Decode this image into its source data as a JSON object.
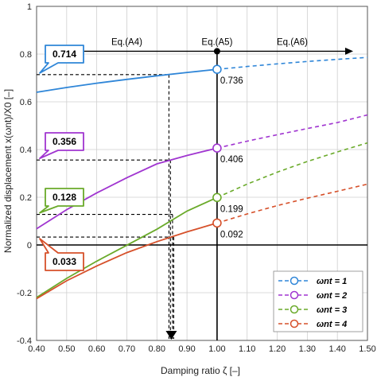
{
  "chart_data": {
    "type": "line",
    "xlabel": "Damping ratio ζ [–]",
    "ylabel": "Normalized displacement x(ωnt)/X0 [–]",
    "xlim": [
      0.4,
      1.5
    ],
    "ylim": [
      -0.4,
      1.0
    ],
    "x_ticks": [
      "0.40",
      "0.50",
      "0.60",
      "0.70",
      "0.80",
      "0.90",
      "1.00",
      "1.10",
      "1.20",
      "1.30",
      "1.40",
      "1.50"
    ],
    "y_ticks": [
      "-0.4",
      "-0.2",
      "0",
      "0.2",
      "0.4",
      "0.6",
      "0.8",
      "1"
    ],
    "grid": true,
    "legend_position": "bottom-right",
    "series": [
      {
        "name": "ωnt = 1",
        "color": "#2f86d8",
        "x": [
          0.4,
          0.5,
          0.6,
          0.7,
          0.8,
          0.9,
          1.0,
          1.1,
          1.2,
          1.3,
          1.4,
          1.5
        ],
        "y": [
          0.64,
          0.66,
          0.678,
          0.694,
          0.709,
          0.723,
          0.736,
          0.748,
          0.759,
          0.769,
          0.778,
          0.786
        ]
      },
      {
        "name": "ωnt = 2",
        "color": "#a035d0",
        "x": [
          0.4,
          0.5,
          0.6,
          0.7,
          0.8,
          0.9,
          1.0,
          1.1,
          1.2,
          1.3,
          1.4,
          1.5
        ],
        "y": [
          0.068,
          0.148,
          0.218,
          0.282,
          0.34,
          0.375,
          0.406,
          0.435,
          0.462,
          0.488,
          0.513,
          0.545
        ]
      },
      {
        "name": "ωnt = 3",
        "color": "#6aaa2a",
        "x": [
          0.4,
          0.5,
          0.6,
          0.7,
          0.8,
          0.9,
          1.0,
          1.1,
          1.2,
          1.3,
          1.4,
          1.5
        ],
        "y": [
          -0.22,
          -0.14,
          -0.068,
          -0.001,
          0.066,
          0.142,
          0.199,
          0.255,
          0.305,
          0.35,
          0.39,
          0.428
        ]
      },
      {
        "name": "ωnt = 4",
        "color": "#d6502a",
        "x": [
          0.4,
          0.5,
          0.6,
          0.7,
          0.8,
          0.9,
          1.0,
          1.1,
          1.2,
          1.3,
          1.4,
          1.5
        ],
        "y": [
          -0.225,
          -0.15,
          -0.088,
          -0.032,
          0.014,
          0.055,
          0.092,
          0.13,
          0.165,
          0.196,
          0.225,
          0.255
        ]
      }
    ],
    "solid_until_x": 1.0,
    "region_labels": [
      {
        "text": "Eq.(A4)",
        "from_x": 0.4,
        "to_x": 1.0
      },
      {
        "text": "Eq.(A5)",
        "at_x": 1.0
      },
      {
        "text": "Eq.(A6)",
        "from_x": 1.0,
        "to_x": 1.5
      }
    ],
    "region_arrow_y": 0.812,
    "marker_x": 1.0,
    "marker_labels": [
      "0.736",
      "0.406",
      "0.199",
      "0.092"
    ],
    "callouts": [
      {
        "text": "0.714",
        "value": 0.714,
        "x_intercept": 0.84,
        "color": "#2f86d8"
      },
      {
        "text": "0.356",
        "value": 0.356,
        "x_intercept": 0.845,
        "color": "#a035d0"
      },
      {
        "text": "0.128",
        "value": 0.128,
        "x_intercept": 0.852,
        "color": "#6aaa2a"
      },
      {
        "text": "0.033",
        "value": 0.033,
        "x_intercept": 0.856,
        "color": "#d6502a"
      }
    ]
  }
}
